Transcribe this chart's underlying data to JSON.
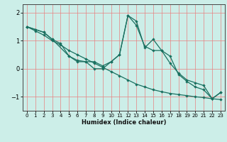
{
  "xlabel": "Humidex (Indice chaleur)",
  "background_color": "#cceee8",
  "line_color": "#1a7060",
  "grid_color_v": "#e88080",
  "grid_color_h": "#e88080",
  "xlim": [
    -0.5,
    23.5
  ],
  "ylim": [
    -1.5,
    2.3
  ],
  "yticks": [
    -1,
    0,
    1,
    2
  ],
  "xticks": [
    0,
    1,
    2,
    3,
    4,
    5,
    6,
    7,
    8,
    9,
    10,
    11,
    12,
    13,
    14,
    15,
    16,
    17,
    18,
    19,
    20,
    21,
    22,
    23
  ],
  "series1_x": [
    0,
    1,
    2,
    3,
    4,
    5,
    6,
    7,
    8,
    9,
    10,
    11,
    12,
    13,
    14,
    15,
    16,
    17,
    18,
    19,
    20,
    21,
    22,
    23
  ],
  "series1_y": [
    1.5,
    1.35,
    1.2,
    1.0,
    0.85,
    0.65,
    0.5,
    0.35,
    0.2,
    0.05,
    -0.1,
    -0.25,
    -0.4,
    -0.55,
    -0.65,
    -0.75,
    -0.82,
    -0.88,
    -0.92,
    -0.96,
    -1.0,
    -1.03,
    -1.07,
    -1.1
  ],
  "series2_x": [
    0,
    1,
    2,
    3,
    5,
    6,
    7,
    8,
    9,
    10,
    11,
    12,
    13,
    14,
    15,
    16,
    17,
    18,
    19,
    20,
    21,
    22,
    23
  ],
  "series2_y": [
    1.5,
    1.4,
    1.3,
    1.05,
    0.45,
    0.25,
    0.25,
    0.0,
    0.0,
    0.25,
    0.5,
    1.9,
    1.55,
    0.8,
    0.65,
    0.65,
    0.2,
    -0.15,
    -0.4,
    -0.5,
    -0.6,
    -1.07,
    -0.85
  ],
  "series3_x": [
    0,
    1,
    2,
    3,
    4,
    5,
    6,
    7,
    8,
    9,
    10,
    11,
    12,
    13,
    14,
    15,
    16,
    17,
    18,
    19,
    20,
    21,
    22,
    23
  ],
  "series3_y": [
    1.5,
    1.4,
    1.3,
    1.05,
    0.9,
    0.45,
    0.3,
    0.25,
    0.25,
    0.1,
    0.25,
    0.5,
    1.9,
    1.7,
    0.75,
    1.05,
    0.65,
    0.45,
    -0.2,
    -0.45,
    -0.65,
    -0.75,
    -1.07,
    -0.85
  ]
}
